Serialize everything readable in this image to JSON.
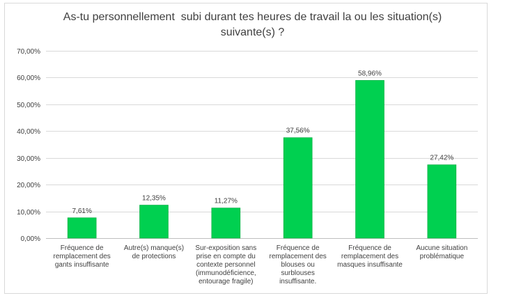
{
  "chart_data": {
    "type": "bar",
    "title_lines": [
      "As-tu personnellement  subi durant tes heures de travail la ou les situation(s)",
      "suivante(s) ?"
    ],
    "categories": [
      "Fréquence de remplacement des gants insuffisante",
      "Autre(s) manque(s) de protections",
      "Sur-exposition sans prise en compte du contexte personnel (immunodéficience, entourage fragile)",
      "Fréquence de remplacement des blouses ou surblouses insuffisante.",
      "Fréquence de remplacement des masques insuffisante",
      "Aucune situation problématique"
    ],
    "values": [
      7.61,
      12.35,
      11.27,
      37.56,
      58.96,
      27.42
    ],
    "value_labels": [
      "7,61%",
      "12,35%",
      "11,27%",
      "37,56%",
      "58,96%",
      "27,42%"
    ],
    "y_ticks": [
      "0,00%",
      "10,00%",
      "20,00%",
      "30,00%",
      "40,00%",
      "50,00%",
      "60,00%",
      "70,00%"
    ],
    "ylim": [
      0,
      70
    ],
    "grid": true,
    "bar_color": "#00d050",
    "bar_edge_color": "#00a83e",
    "grid_color": "#d9d9d9",
    "text_color": "#404040"
  }
}
